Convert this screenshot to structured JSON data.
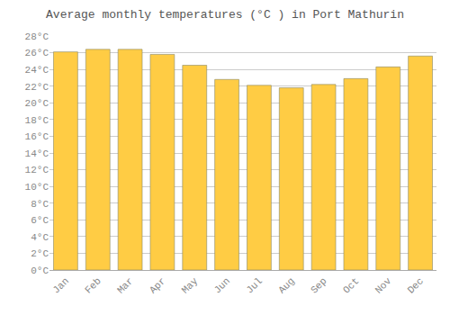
{
  "chart_data": {
    "type": "bar",
    "title": "Average monthly temperatures (°C ) in Port Mathurin",
    "categories": [
      "Jan",
      "Feb",
      "Mar",
      "Apr",
      "May",
      "Jun",
      "Jul",
      "Aug",
      "Sep",
      "Oct",
      "Nov",
      "Dec"
    ],
    "values": [
      26.1,
      26.4,
      26.4,
      25.8,
      24.5,
      22.8,
      22.1,
      21.8,
      22.2,
      22.9,
      24.3,
      25.6
    ],
    "color": "#FFCC44",
    "ylim": [
      0,
      28
    ],
    "yticks": [
      {
        "value": 0,
        "label": "0°C"
      },
      {
        "value": 2,
        "label": "2°C"
      },
      {
        "value": 4,
        "label": "4°C"
      },
      {
        "value": 6,
        "label": "6°C"
      },
      {
        "value": 8,
        "label": "8°C"
      },
      {
        "value": 10,
        "label": "10°C"
      },
      {
        "value": 12,
        "label": "12°C"
      },
      {
        "value": 14,
        "label": "14°C"
      },
      {
        "value": 16,
        "label": "16°C"
      },
      {
        "value": 18,
        "label": "18°C"
      },
      {
        "value": 20,
        "label": "20°C"
      },
      {
        "value": 22,
        "label": "22°C"
      },
      {
        "value": 24,
        "label": "24°C"
      },
      {
        "value": 26,
        "label": "26°C"
      },
      {
        "value": 28,
        "label": "28°C"
      }
    ],
    "grid": true
  }
}
